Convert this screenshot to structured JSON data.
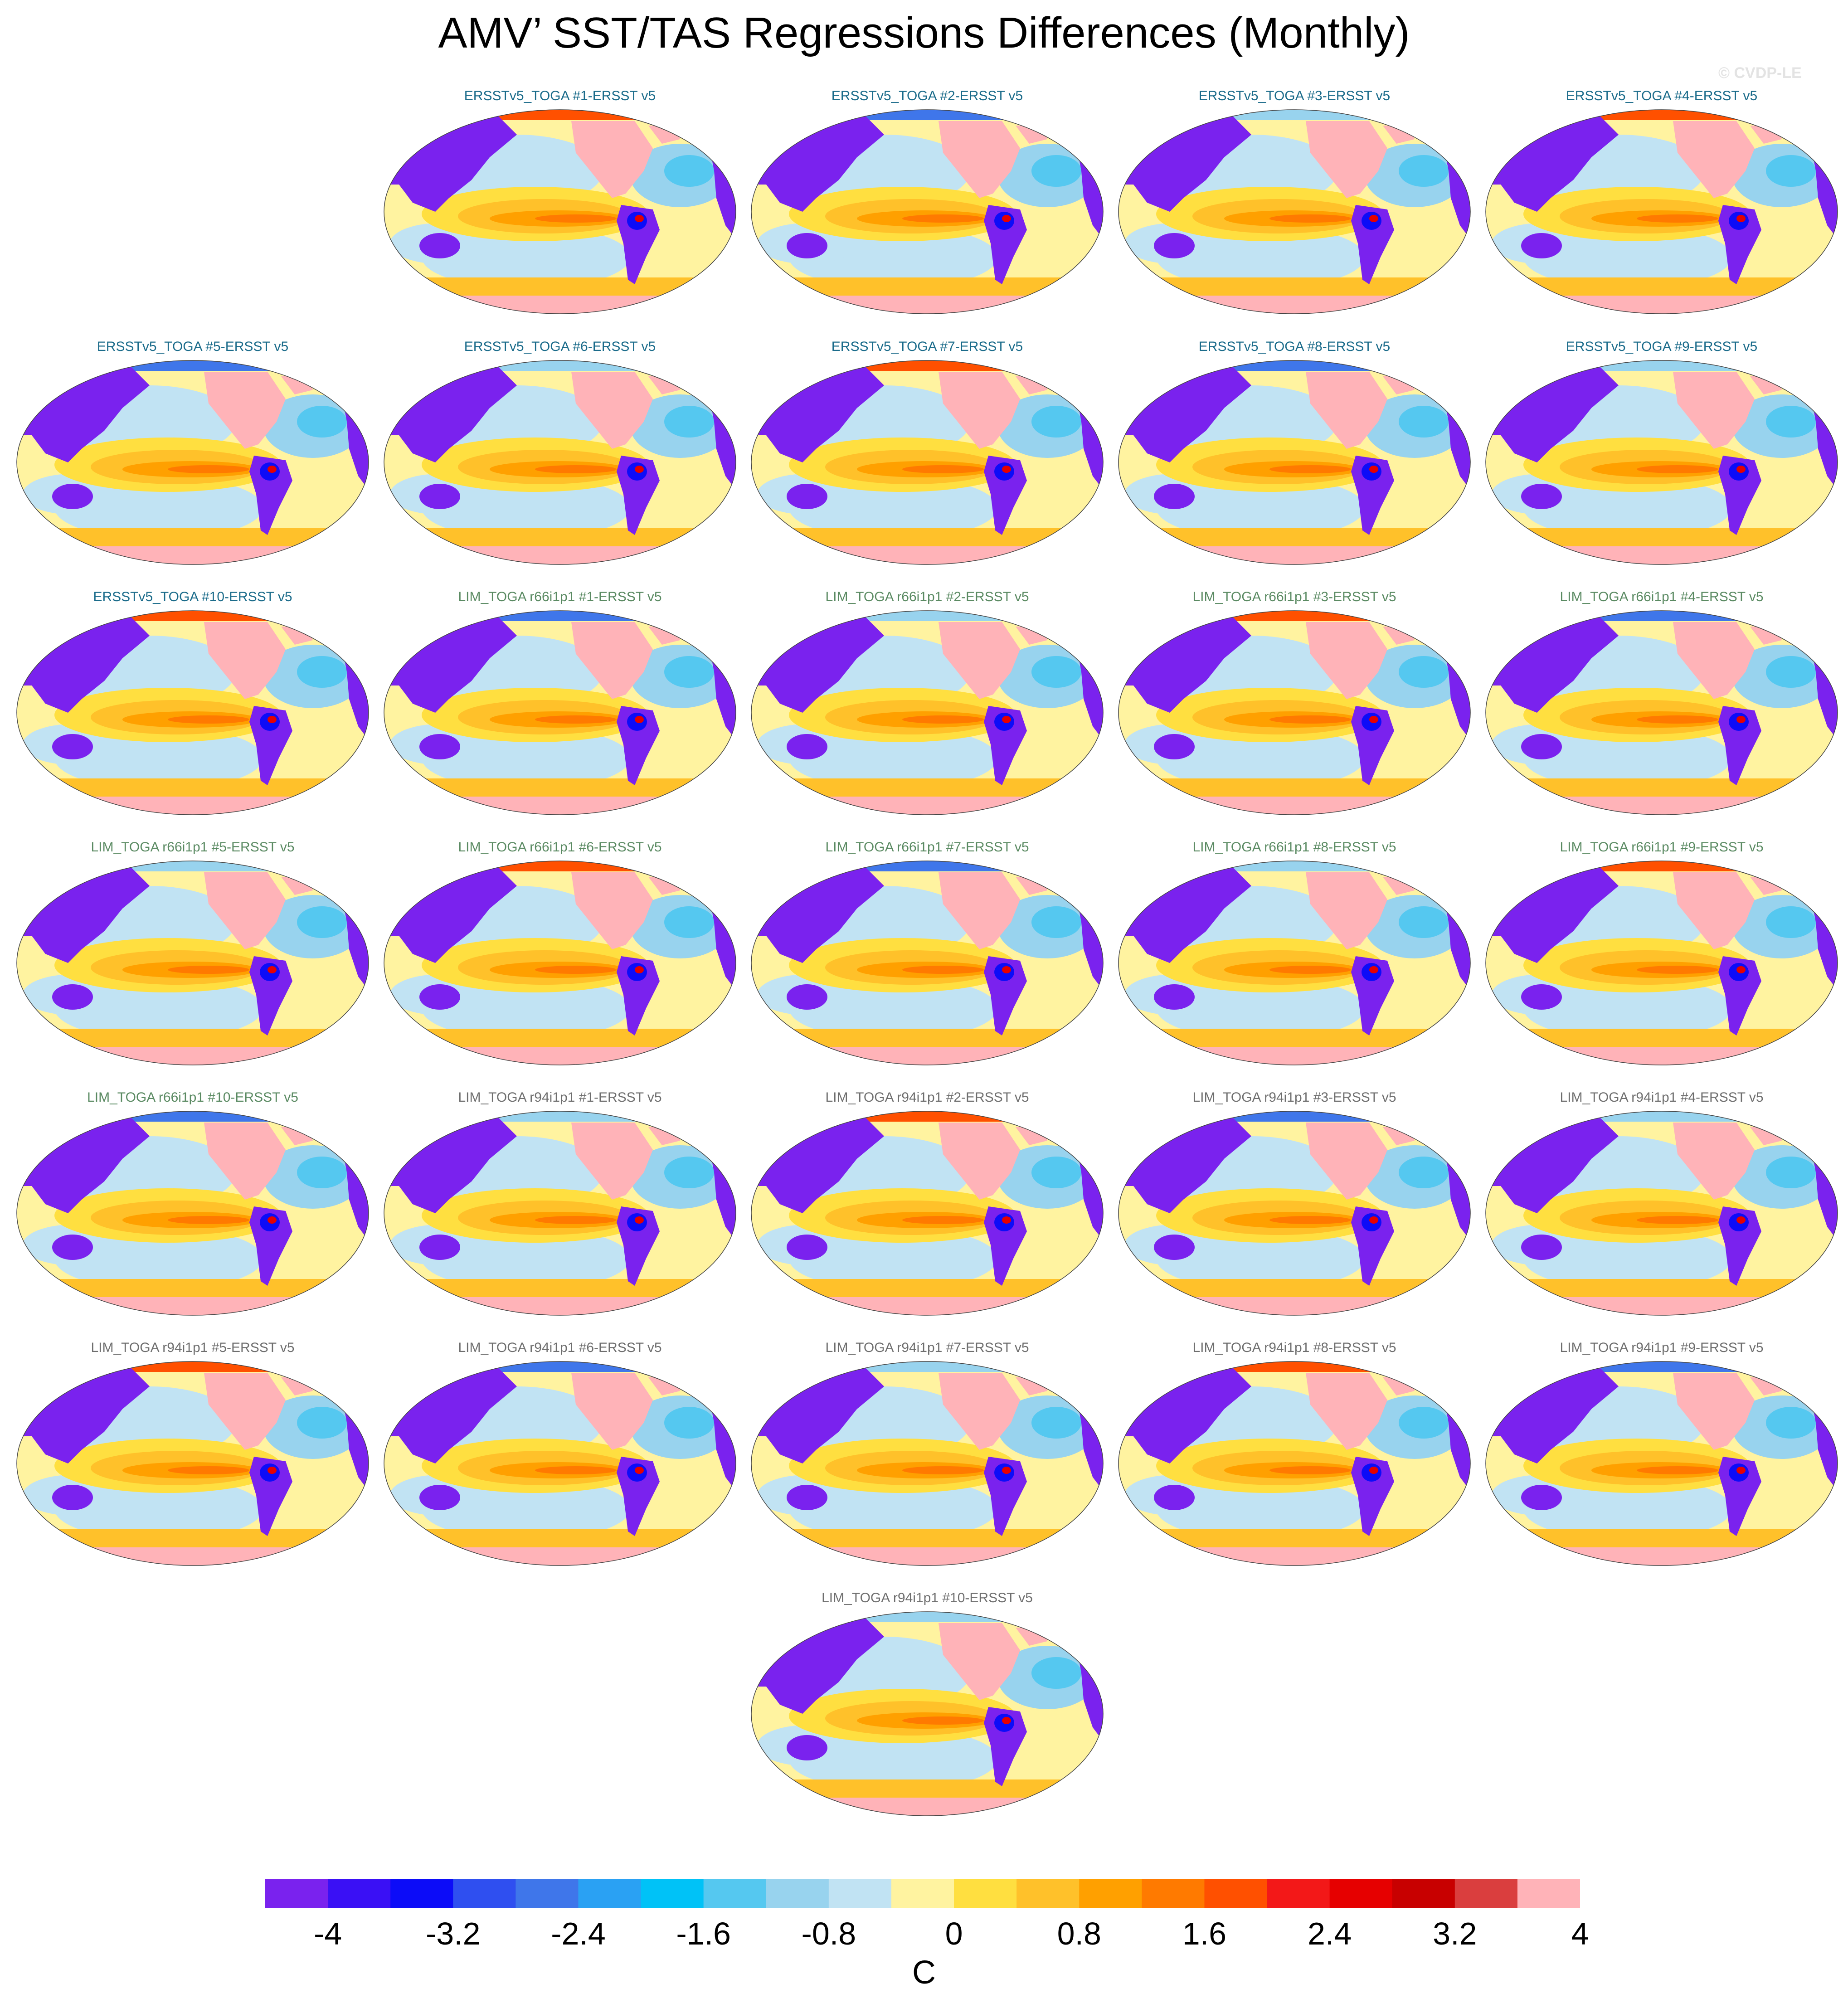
{
  "title": "AMV’ SST/TAS Regressions Differences (Monthly)",
  "watermark": "© CVDP-LE",
  "chart_data": {
    "type": "heatmap",
    "variable": "AMV' SST/TAS regression difference",
    "units": "C",
    "projection": "global map, Pacific-centered",
    "colorbar": {
      "tick_labels": [
        "-4",
        "-3.2",
        "-2.4",
        "-1.6",
        "-0.8",
        "0",
        "0.8",
        "1.6",
        "2.4",
        "3.2",
        "4"
      ],
      "colors": [
        "#7a22ee",
        "#3a10f5",
        "#0c0cf8",
        "#2f4ff0",
        "#3f76ea",
        "#2aa1f3",
        "#00c2f7",
        "#55c8f0",
        "#98d3ee",
        "#c1e3f3",
        "#fff3a0",
        "#ffdf40",
        "#ffc12a",
        "#ffa000",
        "#ff7a00",
        "#ff5000",
        "#f31818",
        "#e60000",
        "#c80000",
        "#da3e3e",
        "#ffb3b8"
      ]
    },
    "panels": [
      {
        "label": "ERSSTv5_TOGA #1-ERSST v5",
        "color": "#1a6b8a"
      },
      {
        "label": "ERSSTv5_TOGA #2-ERSST v5",
        "color": "#1a6b8a"
      },
      {
        "label": "ERSSTv5_TOGA #3-ERSST v5",
        "color": "#1a6b8a"
      },
      {
        "label": "ERSSTv5_TOGA #4-ERSST v5",
        "color": "#1a6b8a"
      },
      {
        "label": "ERSSTv5_TOGA #5-ERSST v5",
        "color": "#1a6b8a"
      },
      {
        "label": "ERSSTv5_TOGA #6-ERSST v5",
        "color": "#1a6b8a"
      },
      {
        "label": "ERSSTv5_TOGA #7-ERSST v5",
        "color": "#1a6b8a"
      },
      {
        "label": "ERSSTv5_TOGA #8-ERSST v5",
        "color": "#1a6b8a"
      },
      {
        "label": "ERSSTv5_TOGA #9-ERSST v5",
        "color": "#1a6b8a"
      },
      {
        "label": "ERSSTv5_TOGA #10-ERSST v5",
        "color": "#1a6b8a"
      },
      {
        "label": "LIM_TOGA r66i1p1 #1-ERSST v5",
        "color": "#5a8a62"
      },
      {
        "label": "LIM_TOGA r66i1p1 #2-ERSST v5",
        "color": "#5a8a62"
      },
      {
        "label": "LIM_TOGA r66i1p1 #3-ERSST v5",
        "color": "#5a8a62"
      },
      {
        "label": "LIM_TOGA r66i1p1 #4-ERSST v5",
        "color": "#5a8a62"
      },
      {
        "label": "LIM_TOGA r66i1p1 #5-ERSST v5",
        "color": "#5a8a62"
      },
      {
        "label": "LIM_TOGA r66i1p1 #6-ERSST v5",
        "color": "#5a8a62"
      },
      {
        "label": "LIM_TOGA r66i1p1 #7-ERSST v5",
        "color": "#5a8a62"
      },
      {
        "label": "LIM_TOGA r66i1p1 #8-ERSST v5",
        "color": "#5a8a62"
      },
      {
        "label": "LIM_TOGA r66i1p1 #9-ERSST v5",
        "color": "#5a8a62"
      },
      {
        "label": "LIM_TOGA r66i1p1 #10-ERSST v5",
        "color": "#5a8a62"
      },
      {
        "label": "LIM_TOGA r94i1p1 #1-ERSST v5",
        "color": "#6e6e6e"
      },
      {
        "label": "LIM_TOGA r94i1p1 #2-ERSST v5",
        "color": "#6e6e6e"
      },
      {
        "label": "LIM_TOGA r94i1p1 #3-ERSST v5",
        "color": "#6e6e6e"
      },
      {
        "label": "LIM_TOGA r94i1p1 #4-ERSST v5",
        "color": "#6e6e6e"
      },
      {
        "label": "LIM_TOGA r94i1p1 #5-ERSST v5",
        "color": "#6e6e6e"
      },
      {
        "label": "LIM_TOGA r94i1p1 #6-ERSST v5",
        "color": "#6e6e6e"
      },
      {
        "label": "LIM_TOGA r94i1p1 #7-ERSST v5",
        "color": "#6e6e6e"
      },
      {
        "label": "LIM_TOGA r94i1p1 #8-ERSST v5",
        "color": "#6e6e6e"
      },
      {
        "label": "LIM_TOGA r94i1p1 #9-ERSST v5",
        "color": "#6e6e6e"
      },
      {
        "label": "LIM_TOGA r94i1p1 #10-ERSST v5",
        "color": "#6e6e6e"
      }
    ]
  }
}
